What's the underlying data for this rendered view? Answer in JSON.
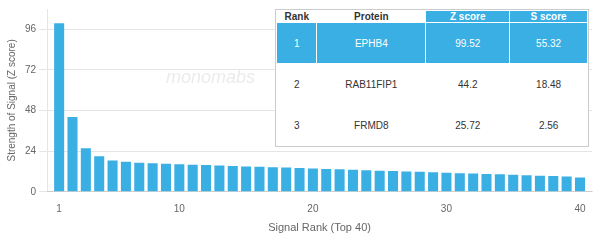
{
  "chart_data": {
    "type": "bar",
    "xlabel": "Signal Rank (Top 40)",
    "ylabel": "Strength of Signal (Z score)",
    "x": [
      1,
      2,
      3,
      4,
      5,
      6,
      7,
      8,
      9,
      10,
      11,
      12,
      13,
      14,
      15,
      16,
      17,
      18,
      19,
      20,
      21,
      22,
      23,
      24,
      25,
      26,
      27,
      28,
      29,
      30,
      31,
      32,
      33,
      34,
      35,
      36,
      37,
      38,
      39,
      40
    ],
    "values": [
      99.52,
      44.2,
      25.72,
      21.0,
      18.5,
      17.8,
      17.2,
      16.8,
      16.5,
      16.3,
      16.0,
      15.8,
      15.5,
      15.2,
      15.0,
      14.8,
      14.5,
      14.3,
      14.0,
      13.8,
      13.5,
      13.3,
      13.0,
      12.8,
      12.5,
      12.3,
      12.0,
      11.8,
      11.5,
      11.3,
      11.0,
      10.8,
      10.5,
      10.3,
      10.0,
      9.8,
      9.5,
      9.3,
      9.0,
      8.5
    ],
    "color": "#3aafe4",
    "xlim": [
      0.1,
      40.9
    ],
    "xticks": [
      1,
      10,
      20,
      30,
      40
    ],
    "ylim": [
      0,
      108
    ],
    "yticks": [
      0,
      24,
      48,
      72,
      96
    ],
    "grid": true,
    "annotations": [
      {
        "text": "monomabs"
      }
    ],
    "table": {
      "headers": [
        "Rank",
        "Protein",
        "Z score",
        "S score"
      ],
      "rows": [
        [
          "1",
          "EPHB4",
          "99.52",
          "55.32"
        ],
        [
          "2",
          "RAB11FIP1",
          "44.2",
          "18.48"
        ],
        [
          "3",
          "FRMD8",
          "25.72",
          "2.56"
        ]
      ]
    }
  }
}
